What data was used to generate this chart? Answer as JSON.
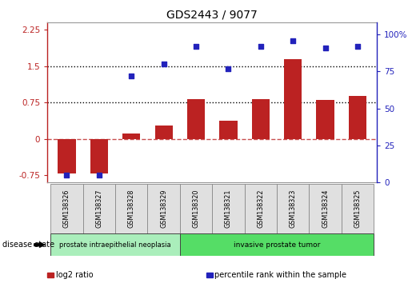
{
  "title": "GDS2443 / 9077",
  "samples": [
    "GSM138326",
    "GSM138327",
    "GSM138328",
    "GSM138329",
    "GSM138320",
    "GSM138321",
    "GSM138322",
    "GSM138323",
    "GSM138324",
    "GSM138325"
  ],
  "log2_ratio": [
    -0.72,
    -0.72,
    0.12,
    0.28,
    0.82,
    0.38,
    0.82,
    1.65,
    0.8,
    0.88
  ],
  "percentile_rank": [
    5,
    5,
    72,
    80,
    92,
    77,
    92,
    96,
    91,
    92
  ],
  "bar_color": "#bb2222",
  "dot_color": "#2222bb",
  "ylim_left": [
    -0.9,
    2.4
  ],
  "ylim_right": [
    0,
    108
  ],
  "yticks_left": [
    -0.75,
    0,
    0.75,
    1.5,
    2.25
  ],
  "yticks_right": [
    0,
    25,
    50,
    75,
    100
  ],
  "hlines": [
    0.75,
    1.5
  ],
  "disease_groups": [
    {
      "label": "prostate intraepithelial neoplasia",
      "count": 4,
      "color": "#aaeebb"
    },
    {
      "label": "invasive prostate tumor",
      "count": 6,
      "color": "#55dd66"
    }
  ],
  "legend_items": [
    {
      "label": "log2 ratio",
      "color": "#bb2222"
    },
    {
      "label": "percentile rank within the sample",
      "color": "#2222bb"
    }
  ],
  "disease_state_label": "disease state",
  "background_color": "#ffffff",
  "bar_width": 0.55
}
